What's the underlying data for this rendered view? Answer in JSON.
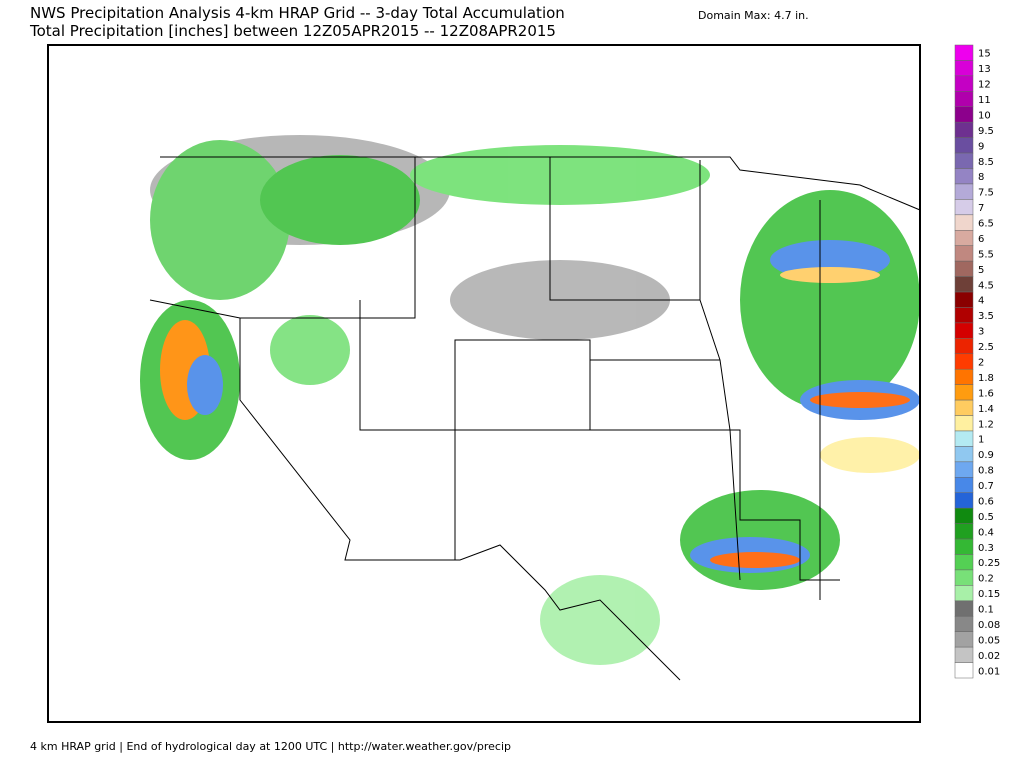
{
  "header": {
    "title": "NWS Precipitation Analysis 4-km HRAP Grid -- 3-day Total Accumulation",
    "subtitle": "Total Precipitation [inches] between 12Z05APR2015 -- 12Z08APR2015",
    "domain_max": "Domain Max:  4.7 in."
  },
  "legend": {
    "items": [
      {
        "label": "15",
        "color": "#ee00ee"
      },
      {
        "label": "13",
        "color": "#d800d8"
      },
      {
        "label": "12",
        "color": "#c400c4"
      },
      {
        "label": "11",
        "color": "#b000ac"
      },
      {
        "label": "10",
        "color": "#8c008c"
      },
      {
        "label": "9.5",
        "color": "#6e3090"
      },
      {
        "label": "9",
        "color": "#6a4ea0"
      },
      {
        "label": "8.5",
        "color": "#7a68b0"
      },
      {
        "label": "8",
        "color": "#9484c4"
      },
      {
        "label": "7.5",
        "color": "#b4aad8"
      },
      {
        "label": "7",
        "color": "#d6cce8"
      },
      {
        "label": "6.5",
        "color": "#f0d6cc"
      },
      {
        "label": "6",
        "color": "#d8aaa0"
      },
      {
        "label": "5.5",
        "color": "#c08880"
      },
      {
        "label": "5",
        "color": "#a06860"
      },
      {
        "label": "4.5",
        "color": "#6e4038"
      },
      {
        "label": "4",
        "color": "#8a0000"
      },
      {
        "label": "3.5",
        "color": "#b00000"
      },
      {
        "label": "3",
        "color": "#d40000"
      },
      {
        "label": "2.5",
        "color": "#ec2400"
      },
      {
        "label": "2",
        "color": "#ff3c00"
      },
      {
        "label": "1.8",
        "color": "#ff7400"
      },
      {
        "label": "1.6",
        "color": "#ff9c10"
      },
      {
        "label": "1.4",
        "color": "#ffcc60"
      },
      {
        "label": "1.2",
        "color": "#fff0a0"
      },
      {
        "label": "1",
        "color": "#b4eaf2"
      },
      {
        "label": "0.9",
        "color": "#90c8f0"
      },
      {
        "label": "0.8",
        "color": "#6ea8f0"
      },
      {
        "label": "0.7",
        "color": "#4888e8"
      },
      {
        "label": "0.6",
        "color": "#2464d8"
      },
      {
        "label": "0.5",
        "color": "#108a10"
      },
      {
        "label": "0.4",
        "color": "#20a020"
      },
      {
        "label": "0.3",
        "color": "#34b834"
      },
      {
        "label": "0.25",
        "color": "#54d054"
      },
      {
        "label": "0.2",
        "color": "#78e078"
      },
      {
        "label": "0.15",
        "color": "#a8f0a8"
      },
      {
        "label": "0.1",
        "color": "#707070"
      },
      {
        "label": "0.08",
        "color": "#888888"
      },
      {
        "label": "0.05",
        "color": "#a2a2a2"
      },
      {
        "label": "0.02",
        "color": "#c4c4c4"
      },
      {
        "label": "0.01",
        "color": "#ffffff"
      }
    ]
  },
  "footer": {
    "text": "4 km HRAP grid | End of hydrological day at 1200 UTC | http://water.weather.gov/precip"
  }
}
